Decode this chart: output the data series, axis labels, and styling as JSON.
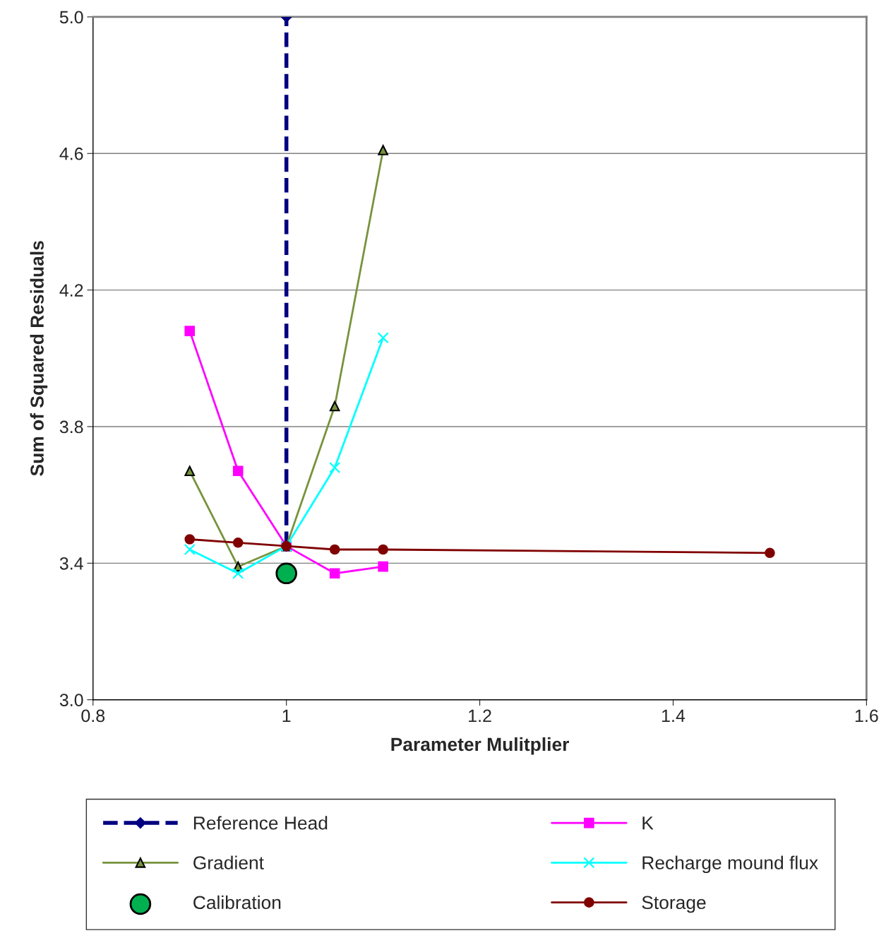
{
  "chart_data": {
    "type": "line",
    "xlabel": "Parameter Mulitplier",
    "ylabel": "Sum of Squared Residuals",
    "xlim": [
      0.8,
      1.6
    ],
    "xticks": [
      0.8,
      1,
      1.2,
      1.4,
      1.6
    ],
    "ylim": [
      3.0,
      5.0
    ],
    "yticks": [
      {
        "value": 3.0,
        "label": "3.0"
      },
      3.4,
      3.8,
      4.2,
      4.6,
      {
        "value": 5.0,
        "label": "5.0"
      }
    ],
    "grid": "y",
    "legend": "bottom",
    "series": [
      {
        "name": "Reference Head",
        "color": "#000080",
        "marker": "diamond",
        "line_style": "dashed",
        "x": [
          1,
          1
        ],
        "values": [
          3.45,
          5.0
        ]
      },
      {
        "name": "K",
        "color": "#ff00ff",
        "marker": "square",
        "x": [
          0.9,
          0.95,
          1,
          1.05,
          1.1
        ],
        "values": [
          4.08,
          3.67,
          3.45,
          3.37,
          3.39
        ]
      },
      {
        "name": "Gradient",
        "color": "#77933c",
        "marker": "triangle",
        "x": [
          0.9,
          0.95,
          1,
          1.05,
          1.1
        ],
        "values": [
          3.67,
          3.39,
          3.45,
          3.86,
          4.61
        ]
      },
      {
        "name": "Recharge mound flux",
        "color": "#00ffff",
        "marker": "cross",
        "x": [
          0.9,
          0.95,
          1,
          1.05,
          1.1
        ],
        "values": [
          3.44,
          3.37,
          3.45,
          3.68,
          4.06
        ]
      },
      {
        "name": "Calibration",
        "type": "scatter",
        "color": "#00b050",
        "marker": "circle",
        "x": [
          1
        ],
        "values": [
          3.37
        ]
      },
      {
        "name": "Storage",
        "color": "#800000",
        "marker": "circle",
        "x": [
          0.9,
          0.95,
          1,
          1.05,
          1.1,
          1.5
        ],
        "values": [
          3.47,
          3.46,
          3.45,
          3.44,
          3.44,
          3.43
        ]
      }
    ]
  }
}
